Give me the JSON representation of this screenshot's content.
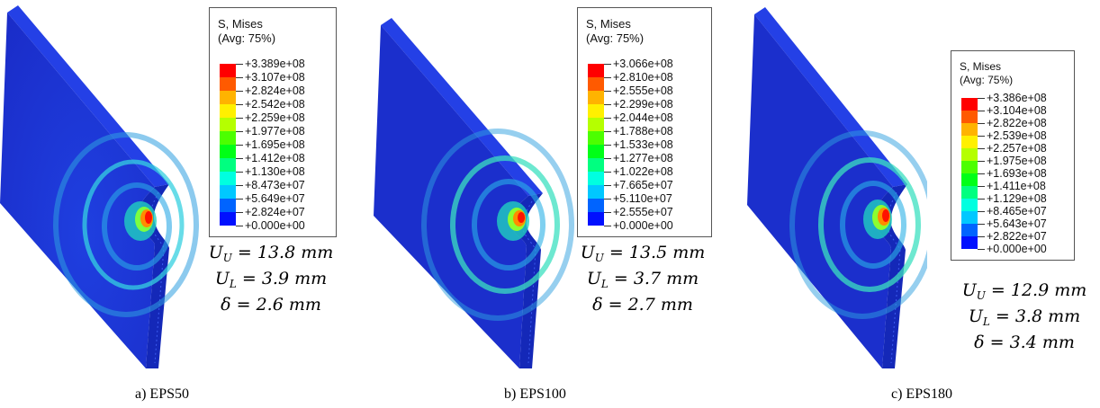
{
  "panels": [
    {
      "caption": "a) EPS50",
      "legend_title": [
        "S, Mises",
        "(Avg: 75%)"
      ],
      "legend_values": [
        "+3.389e+08",
        "+3.107e+08",
        "+2.824e+08",
        "+2.542e+08",
        "+2.259e+08",
        "+1.977e+08",
        "+1.695e+08",
        "+1.412e+08",
        "+1.130e+08",
        "+8.473e+07",
        "+5.649e+07",
        "+2.824e+07",
        "+0.000e+00"
      ],
      "results": {
        "UU": "13.8",
        "UL": "3.9",
        "delta": "2.6",
        "unit": "mm"
      }
    },
    {
      "caption": "b) EPS100",
      "legend_title": [
        "S, Mises",
        "(Avg: 75%)"
      ],
      "legend_values": [
        "+3.066e+08",
        "+2.810e+08",
        "+2.555e+08",
        "+2.299e+08",
        "+2.044e+08",
        "+1.788e+08",
        "+1.533e+08",
        "+1.277e+08",
        "+1.022e+08",
        "+7.665e+07",
        "+5.110e+07",
        "+2.555e+07",
        "+0.000e+00"
      ],
      "results": {
        "UU": "13.5",
        "UL": "3.7",
        "delta": "2.7",
        "unit": "mm"
      }
    },
    {
      "caption": "c) EPS180",
      "legend_title": [
        "S, Mises",
        "(Avg: 75%)"
      ],
      "legend_values": [
        "+3.386e+08",
        "+3.104e+08",
        "+2.822e+08",
        "+2.539e+08",
        "+2.257e+08",
        "+1.975e+08",
        "+1.693e+08",
        "+1.411e+08",
        "+1.129e+08",
        "+8.465e+07",
        "+5.643e+07",
        "+2.822e+07",
        "+0.000e+00"
      ],
      "results": {
        "UU": "12.9",
        "UL": "3.8",
        "delta": "3.4",
        "unit": "mm"
      }
    }
  ],
  "legend_colors": [
    "#ff0000",
    "#ff5a00",
    "#ffb300",
    "#fff000",
    "#b5ff00",
    "#4cff00",
    "#00ff17",
    "#00ff80",
    "#00ffe0",
    "#00c8ff",
    "#0064ff",
    "#0010ff"
  ],
  "colors": {
    "plate_face": "#1c30cf",
    "plate_edge": "#0f22b0",
    "ring": "#32c8d8",
    "hot": "#ff1200"
  }
}
